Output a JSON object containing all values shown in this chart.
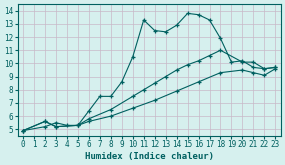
{
  "xlabel": "Humidex (Indice chaleur)",
  "xlim": [
    -0.5,
    23.5
  ],
  "ylim": [
    4.5,
    14.5
  ],
  "xticks": [
    0,
    1,
    2,
    3,
    4,
    5,
    6,
    7,
    8,
    9,
    10,
    11,
    12,
    13,
    14,
    15,
    16,
    17,
    18,
    19,
    20,
    21,
    22,
    23
  ],
  "yticks": [
    5,
    6,
    7,
    8,
    9,
    10,
    11,
    12,
    13,
    14
  ],
  "bg_color": "#d6f0ee",
  "grid_color": "#c8b8c8",
  "line_color": "#006060",
  "line1_x": [
    0,
    2,
    3,
    4,
    5,
    6,
    7,
    8,
    9,
    10,
    11,
    12,
    13,
    14,
    15,
    16,
    17,
    18,
    19,
    20,
    21,
    22,
    23
  ],
  "line1_y": [
    4.9,
    5.2,
    5.5,
    5.3,
    5.3,
    6.4,
    7.5,
    7.5,
    8.6,
    10.5,
    13.3,
    12.5,
    12.4,
    12.9,
    13.8,
    13.7,
    13.3,
    11.9,
    10.1,
    10.2,
    9.7,
    9.6,
    9.7
  ],
  "line2_x": [
    0,
    2,
    3,
    5,
    6,
    8,
    10,
    11,
    12,
    13,
    14,
    15,
    16,
    17,
    18,
    20,
    21,
    22,
    23
  ],
  "line2_y": [
    4.9,
    5.6,
    5.2,
    5.3,
    5.8,
    6.5,
    7.5,
    8.0,
    8.5,
    9.0,
    9.5,
    9.9,
    10.2,
    10.6,
    11.0,
    10.1,
    10.1,
    9.6,
    9.7
  ],
  "line3_x": [
    0,
    2,
    3,
    5,
    6,
    8,
    10,
    12,
    14,
    16,
    18,
    20,
    21,
    22,
    23
  ],
  "line3_y": [
    4.9,
    5.6,
    5.2,
    5.3,
    5.6,
    6.0,
    6.6,
    7.2,
    7.9,
    8.6,
    9.3,
    9.5,
    9.3,
    9.1,
    9.6
  ]
}
